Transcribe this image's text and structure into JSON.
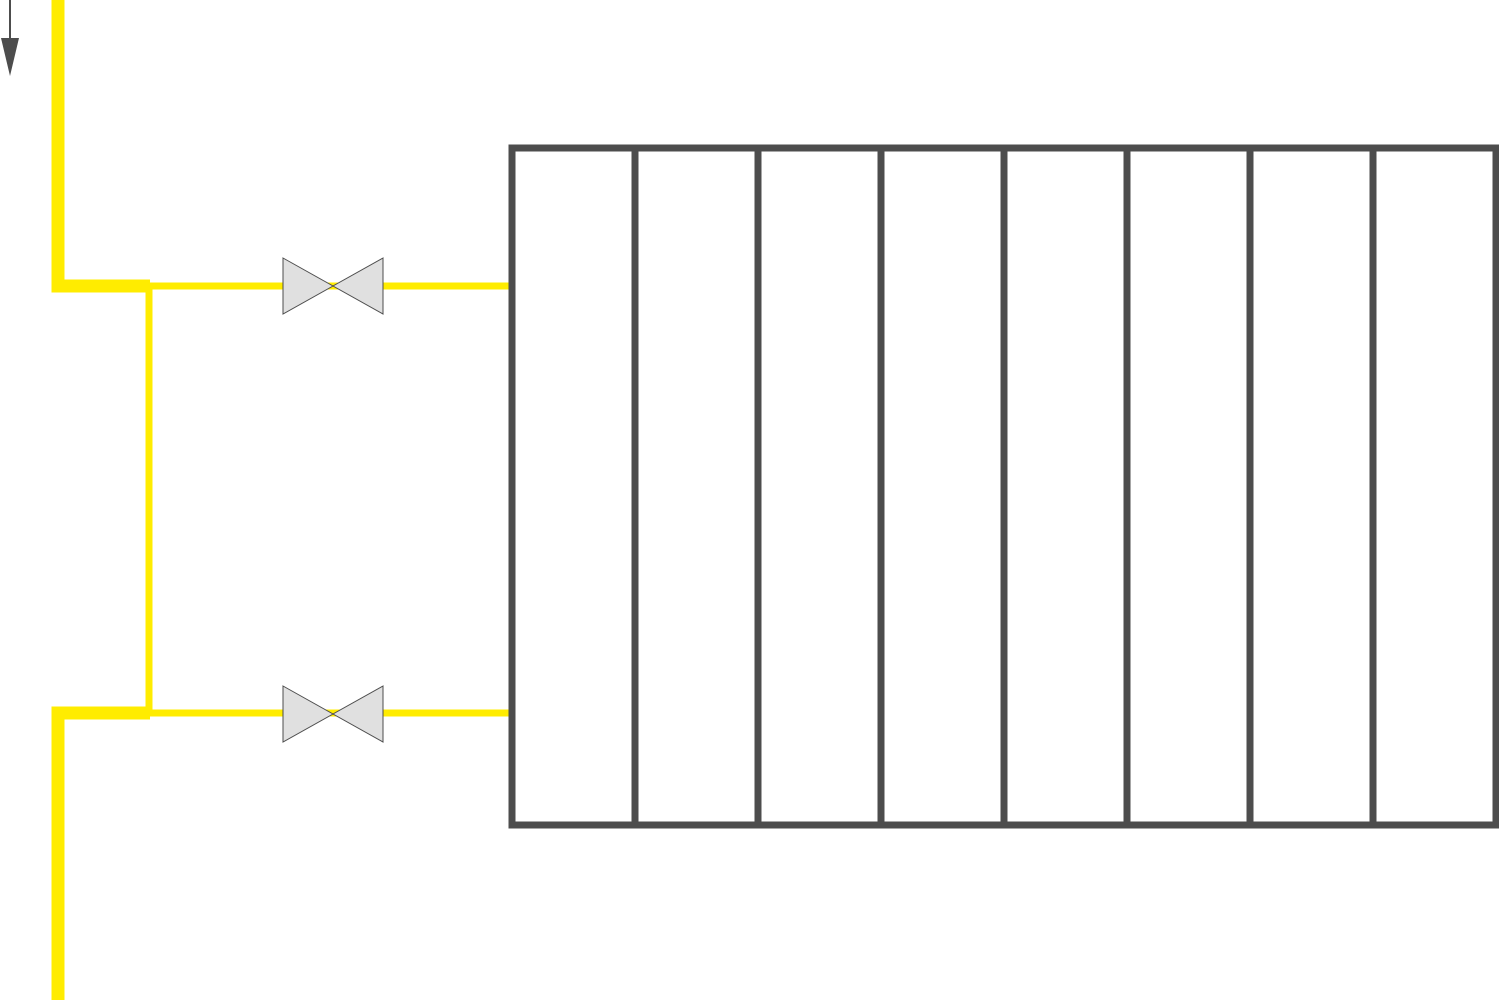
{
  "diagram": {
    "type": "radiator-piping-schematic",
    "colors": {
      "pipe": "#ffec00",
      "radiator": "#4d4d4d",
      "valve_fill": "#e0e0e0",
      "valve_stroke": "#4d4d4d",
      "arrow": "#4d4d4d",
      "background": "#ffffff"
    },
    "components": {
      "flow_arrow": {
        "icon": "down-arrow-icon",
        "direction": "down"
      },
      "supply_riser": {
        "icon": "pipe"
      },
      "return_riser": {
        "icon": "pipe"
      },
      "bypass_pipe": {
        "icon": "pipe"
      },
      "supply_valve": {
        "icon": "gate-valve-icon"
      },
      "return_valve": {
        "icon": "gate-valve-icon"
      },
      "radiator": {
        "icon": "radiator-icon",
        "section_count": 8
      }
    }
  }
}
